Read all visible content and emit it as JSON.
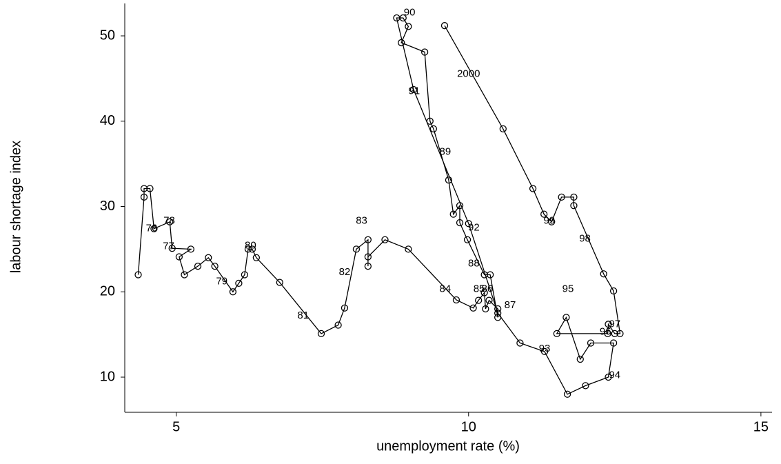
{
  "chart_data": {
    "type": "line",
    "xlabel": "unemployment rate (%)",
    "ylabel": "labour shortage index",
    "color": "#000000",
    "markers": true,
    "grid": false,
    "xlim": [
      4.12,
      15.19
    ],
    "xticks": [
      5,
      10,
      15
    ],
    "ylim": [
      5.88,
      53.8
    ],
    "yticks": [
      10,
      20,
      30,
      40,
      50
    ],
    "x": [
      4.35,
      4.45,
      4.45,
      4.55,
      4.62,
      4.89,
      4.93,
      5.25,
      5.05,
      5.14,
      5.37,
      5.55,
      5.66,
      5.97,
      6.07,
      6.17,
      6.23,
      6.3,
      6.37,
      6.77,
      7.48,
      7.77,
      7.88,
      8.08,
      8.28,
      8.28,
      8.28,
      8.57,
      8.97,
      9.79,
      10.08,
      10.17,
      10.27,
      10.29,
      10.35,
      10.5,
      10.5,
      10.37,
      10.27,
      9.98,
      9.85,
      9.85,
      9.74,
      9.66,
      9.4,
      9.34,
      9.25,
      8.85,
      8.97,
      8.88,
      8.77,
      9.06,
      10.0,
      10.5,
      10.88,
      11.3,
      11.69,
      12.0,
      12.39,
      12.48,
      12.09,
      11.91,
      11.67,
      11.51,
      12.38,
      12.39,
      12.5,
      12.59,
      12.48,
      12.31,
      11.8,
      11.8,
      11.59,
      11.42,
      11.29,
      11.1,
      10.59,
      9.59
    ],
    "values": [
      22.0,
      31.1,
      32.1,
      32.1,
      27.4,
      28.2,
      25.1,
      25.0,
      24.1,
      22.0,
      23.0,
      24.0,
      23.0,
      20.0,
      21.0,
      22.0,
      25.0,
      25.0,
      24.0,
      21.1,
      15.1,
      16.1,
      18.1,
      25.0,
      26.1,
      23.0,
      24.1,
      26.1,
      25.0,
      19.05,
      18.1,
      19.0,
      19.9,
      18.0,
      19.0,
      18.0,
      17.0,
      22.0,
      22.0,
      26.1,
      28.1,
      30.1,
      29.1,
      33.1,
      39.1,
      40.0,
      48.1,
      49.2,
      51.1,
      52.1,
      52.1,
      43.7,
      28.0,
      17.5,
      14.0,
      13.0,
      8.0,
      9.0,
      10.0,
      14.0,
      14.0,
      12.1,
      17.0,
      15.1,
      15.1,
      16.2,
      15.1,
      15.1,
      20.1,
      22.1,
      30.1,
      31.1,
      31.1,
      28.2,
      29.1,
      32.1,
      39.1,
      51.2
    ],
    "annotations": [
      {
        "text": "76",
        "x": 4.58,
        "y": 27.4
      },
      {
        "text": "77",
        "x": 4.87,
        "y": 25.3
      },
      {
        "text": "78",
        "x": 4.88,
        "y": 28.3
      },
      {
        "text": "79",
        "x": 5.78,
        "y": 21.2
      },
      {
        "text": "80",
        "x": 6.27,
        "y": 25.4
      },
      {
        "text": "81",
        "x": 7.17,
        "y": 17.2
      },
      {
        "text": "82",
        "x": 7.88,
        "y": 22.3
      },
      {
        "text": "83",
        "x": 8.17,
        "y": 28.3
      },
      {
        "text": "84",
        "x": 9.6,
        "y": 20.3
      },
      {
        "text": "85",
        "x": 10.18,
        "y": 20.3
      },
      {
        "text": "86",
        "x": 10.32,
        "y": 20.3
      },
      {
        "text": "87",
        "x": 10.71,
        "y": 18.4
      },
      {
        "text": "88",
        "x": 10.09,
        "y": 23.3
      },
      {
        "text": "89",
        "x": 9.6,
        "y": 36.4
      },
      {
        "text": "90",
        "x": 8.99,
        "y": 52.7
      },
      {
        "text": "91",
        "x": 9.07,
        "y": 43.5
      },
      {
        "text": "92",
        "x": 10.09,
        "y": 27.5
      },
      {
        "text": "93",
        "x": 11.3,
        "y": 13.3
      },
      {
        "text": "94",
        "x": 12.5,
        "y": 10.2
      },
      {
        "text": "95",
        "x": 11.7,
        "y": 20.3
      },
      {
        "text": "96",
        "x": 12.34,
        "y": 15.3
      },
      {
        "text": "97",
        "x": 12.5,
        "y": 16.2
      },
      {
        "text": "98",
        "x": 11.99,
        "y": 26.2
      },
      {
        "text": "99",
        "x": 11.38,
        "y": 28.3
      },
      {
        "text": "2000",
        "x": 10.0,
        "y": 45.5
      }
    ]
  }
}
